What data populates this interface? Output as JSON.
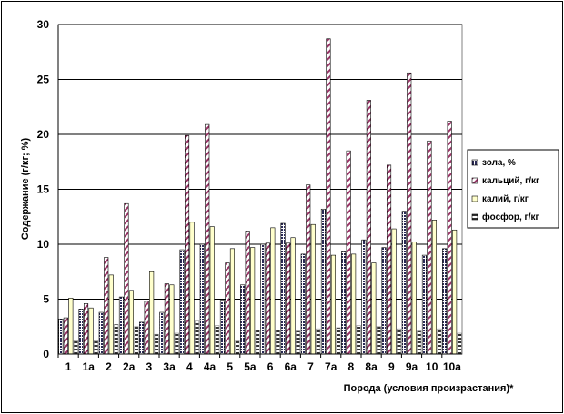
{
  "chart_data": {
    "type": "bar",
    "title": "",
    "xlabel": "Порода (условия произрастания)*",
    "ylabel": "Содержание (г/кг; %)",
    "ylim": [
      0,
      30
    ],
    "yticks": [
      0,
      5,
      10,
      15,
      20,
      25,
      30
    ],
    "grid": true,
    "legend_position": "right",
    "categories": [
      "1",
      "1a",
      "2",
      "2a",
      "3",
      "3a",
      "4",
      "4a",
      "5",
      "5a",
      "6",
      "6a",
      "7",
      "7a",
      "8",
      "8a",
      "9",
      "9a",
      "10",
      "10a"
    ],
    "series": [
      {
        "name": "зола, %",
        "color": "#3a3a5a",
        "values": [
          3.2,
          4.1,
          3.8,
          5.2,
          2.9,
          3.8,
          9.5,
          10.0,
          4.9,
          6.3,
          10.0,
          11.9,
          9.1,
          13.2,
          9.3,
          10.4,
          9.7,
          13.0,
          9.0,
          9.6
        ]
      },
      {
        "name": "кальций, г/кг",
        "color": "#993366",
        "values": [
          3.3,
          4.6,
          8.8,
          13.7,
          4.8,
          6.4,
          19.9,
          20.9,
          8.3,
          11.2,
          10.1,
          10.1,
          15.4,
          28.7,
          18.5,
          23.1,
          17.2,
          25.6,
          19.4,
          21.2
        ]
      },
      {
        "name": "калий, г/кг",
        "color": "#ffffcc",
        "values": [
          5.1,
          4.2,
          7.2,
          5.8,
          7.5,
          6.3,
          12.0,
          11.6,
          9.6,
          9.7,
          11.5,
          10.6,
          11.8,
          9.0,
          9.1,
          8.3,
          11.4,
          10.2,
          12.2,
          11.3
        ]
      },
      {
        "name": "фосфор, г/кг",
        "color": "#ffffff",
        "values": [
          1.2,
          1.2,
          2.7,
          2.5,
          1.8,
          1.9,
          3.0,
          2.6,
          1.2,
          2.2,
          2.2,
          2.1,
          2.3,
          2.4,
          2.6,
          2.5,
          2.3,
          2.1,
          2.3,
          1.9
        ]
      }
    ]
  }
}
